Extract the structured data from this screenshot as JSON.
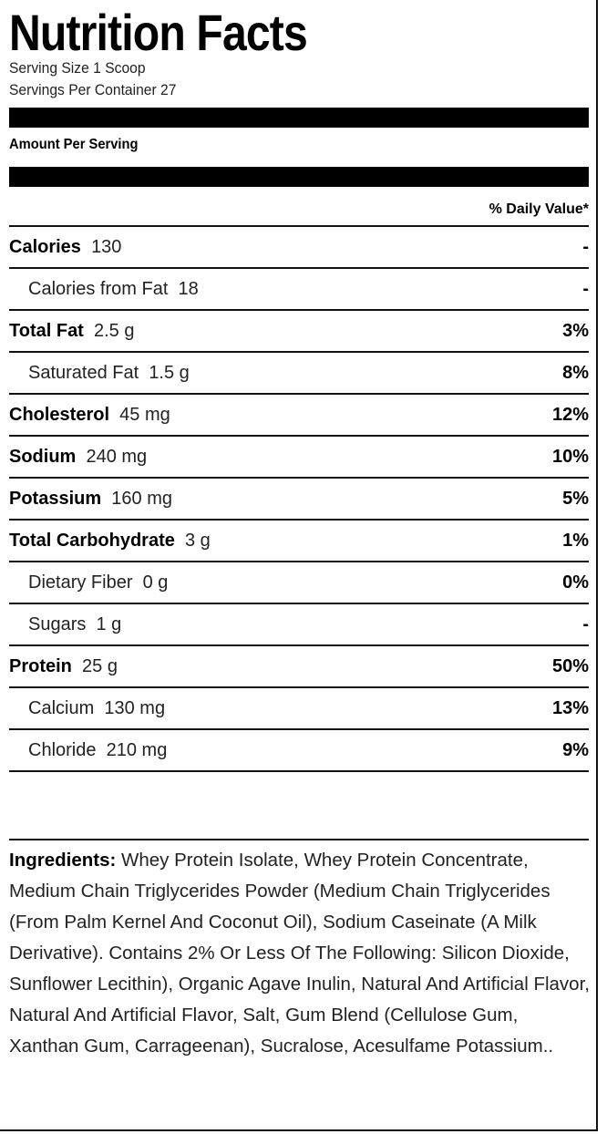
{
  "title": "Nutrition Facts",
  "serving_size": "Serving Size 1 Scoop",
  "servings_per_container": "Servings Per Container 27",
  "amount_per_serving": "Amount Per Serving",
  "daily_value_header": "% Daily Value*",
  "rows": [
    {
      "name": "Calories",
      "amount": "130",
      "dv": "-",
      "indent": false
    },
    {
      "name": "Calories from Fat",
      "amount": "18",
      "dv": "-",
      "indent": true
    },
    {
      "name": "Total Fat",
      "amount": "2.5 g",
      "dv": "3%",
      "indent": false
    },
    {
      "name": "Saturated Fat",
      "amount": "1.5 g",
      "dv": "8%",
      "indent": true
    },
    {
      "name": "Cholesterol",
      "amount": "45 mg",
      "dv": "12%",
      "indent": false
    },
    {
      "name": "Sodium",
      "amount": "240 mg",
      "dv": "10%",
      "indent": false
    },
    {
      "name": "Potassium",
      "amount": "160 mg",
      "dv": "5%",
      "indent": false
    },
    {
      "name": "Total Carbohydrate",
      "amount": "3 g",
      "dv": "1%",
      "indent": false
    },
    {
      "name": "Dietary Fiber",
      "amount": "0 g",
      "dv": "0%",
      "indent": true
    },
    {
      "name": "Sugars",
      "amount": "1 g",
      "dv": "-",
      "indent": true
    },
    {
      "name": "Protein",
      "amount": "25 g",
      "dv": "50%",
      "indent": false
    },
    {
      "name": "Calcium",
      "amount": "130 mg",
      "dv": "13%",
      "indent": true
    },
    {
      "name": "Chloride",
      "amount": "210 mg",
      "dv": "9%",
      "indent": true
    }
  ],
  "ingredients": {
    "label": "Ingredients:",
    "text": "Whey Protein Isolate, Whey Protein Concentrate, Medium Chain Triglycerides Powder (Medium Chain Triglycerides (From Palm Kernel And Coconut Oil), Sodium Caseinate (A Milk Derivative). Contains 2% Or Less Of The Following: Silicon Dioxide, Sunflower Lecithin), Organic Agave Inulin, Natural And Artificial Flavor, Natural And Artificial Flavor, Salt, Gum Blend (Cellulose Gum, Xanthan Gum, Carrageenan), Sucralose, Acesulfame Potassium.."
  }
}
